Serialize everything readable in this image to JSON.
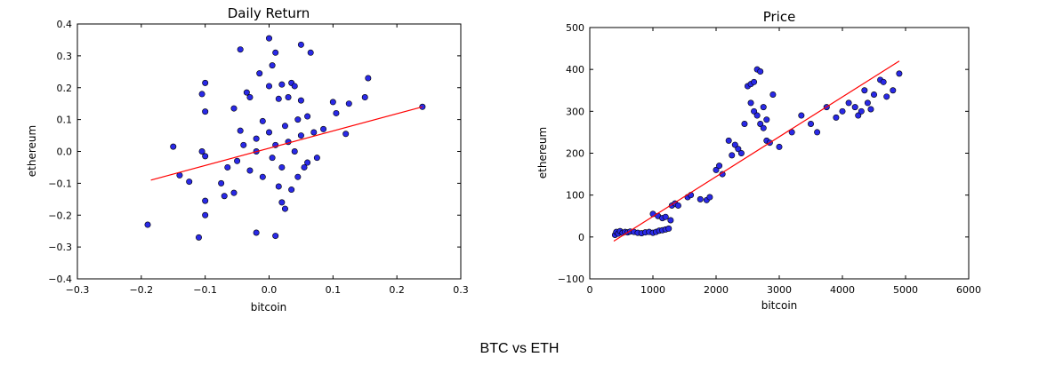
{
  "figure": {
    "caption": "BTC vs ETH"
  },
  "chart_data": [
    {
      "type": "scatter",
      "title": "Daily Return",
      "xlabel": "bitcoin",
      "ylabel": "ethereum",
      "xlim": [
        -0.3,
        0.3
      ],
      "ylim": [
        -0.4,
        0.4
      ],
      "xticks": [
        -0.3,
        -0.2,
        -0.1,
        0.0,
        0.1,
        0.2,
        0.3
      ],
      "yticks": [
        -0.4,
        -0.3,
        -0.2,
        -0.1,
        0.0,
        0.1,
        0.2,
        0.3,
        0.4
      ],
      "xtick_labels": [
        "−0.3",
        "−0.2",
        "−0.1",
        "0.0",
        "0.1",
        "0.2",
        "0.3"
      ],
      "ytick_labels": [
        "−0.4",
        "−0.3",
        "−0.2",
        "−0.1",
        "0.0",
        "0.1",
        "0.2",
        "0.3",
        "0.4"
      ],
      "marker_color": "#2929e6",
      "line_color": "#ff0000",
      "grid": false,
      "points": [
        [
          0.0,
          0.355
        ],
        [
          0.05,
          0.335
        ],
        [
          -0.045,
          0.32
        ],
        [
          0.065,
          0.31
        ],
        [
          0.01,
          0.31
        ],
        [
          0.005,
          0.27
        ],
        [
          -0.015,
          0.245
        ],
        [
          0.035,
          0.215
        ],
        [
          0.04,
          0.205
        ],
        [
          -0.1,
          0.215
        ],
        [
          -0.105,
          0.18
        ],
        [
          -0.1,
          0.125
        ],
        [
          -0.035,
          0.185
        ],
        [
          0.0,
          0.205
        ],
        [
          0.02,
          0.21
        ],
        [
          0.155,
          0.23
        ],
        [
          0.15,
          0.17
        ],
        [
          0.1,
          0.155
        ],
        [
          0.125,
          0.15
        ],
        [
          0.105,
          0.12
        ],
        [
          0.24,
          0.14
        ],
        [
          0.085,
          0.07
        ],
        [
          0.12,
          0.055
        ],
        [
          -0.15,
          0.015
        ],
        [
          -0.1,
          -0.015
        ],
        [
          -0.105,
          0.0
        ],
        [
          -0.14,
          -0.075
        ],
        [
          -0.125,
          -0.095
        ],
        [
          -0.1,
          -0.155
        ],
        [
          -0.1,
          -0.2
        ],
        [
          -0.19,
          -0.23
        ],
        [
          -0.11,
          -0.27
        ],
        [
          -0.02,
          -0.255
        ],
        [
          0.01,
          -0.265
        ],
        [
          0.025,
          -0.18
        ],
        [
          0.02,
          -0.16
        ],
        [
          0.035,
          -0.12
        ],
        [
          -0.075,
          -0.1
        ],
        [
          -0.07,
          -0.14
        ],
        [
          -0.055,
          -0.13
        ],
        [
          0.06,
          -0.035
        ],
        [
          0.045,
          -0.08
        ],
        [
          0.075,
          -0.02
        ],
        [
          0.07,
          0.06
        ],
        [
          0.06,
          0.11
        ],
        [
          0.05,
          0.16
        ],
        [
          0.03,
          0.17
        ],
        [
          0.015,
          0.165
        ],
        [
          -0.03,
          0.17
        ],
        [
          -0.055,
          0.135
        ],
        [
          -0.01,
          0.095
        ],
        [
          0.0,
          0.06
        ],
        [
          0.01,
          0.02
        ],
        [
          -0.02,
          0.0
        ],
        [
          0.03,
          0.03
        ],
        [
          0.04,
          0.0
        ],
        [
          -0.04,
          0.02
        ],
        [
          -0.05,
          -0.03
        ],
        [
          0.02,
          -0.05
        ],
        [
          -0.01,
          -0.08
        ],
        [
          0.015,
          -0.11
        ],
        [
          -0.03,
          -0.06
        ],
        [
          0.05,
          0.05
        ],
        [
          -0.02,
          0.04
        ],
        [
          0.005,
          -0.02
        ],
        [
          0.025,
          0.08
        ],
        [
          -0.045,
          0.065
        ],
        [
          0.045,
          0.1
        ],
        [
          -0.065,
          -0.05
        ],
        [
          0.055,
          -0.05
        ]
      ],
      "fit_line": {
        "x": [
          -0.185,
          0.24
        ],
        "y": [
          -0.09,
          0.14
        ]
      }
    },
    {
      "type": "scatter",
      "title": "Price",
      "xlabel": "bitcoin",
      "ylabel": "ethereum",
      "xlim": [
        0,
        6000
      ],
      "ylim": [
        -100,
        500
      ],
      "xticks": [
        0,
        1000,
        2000,
        3000,
        4000,
        5000,
        6000
      ],
      "yticks": [
        -100,
        0,
        100,
        200,
        300,
        400,
        500
      ],
      "xtick_labels": [
        "0",
        "1000",
        "2000",
        "3000",
        "4000",
        "5000",
        "6000"
      ],
      "ytick_labels": [
        "−100",
        "0",
        "100",
        "200",
        "300",
        "400",
        "500"
      ],
      "marker_color": "#2929e6",
      "line_color": "#ff0000",
      "grid": false,
      "points": [
        [
          400,
          5
        ],
        [
          420,
          12
        ],
        [
          450,
          8
        ],
        [
          480,
          14
        ],
        [
          520,
          10
        ],
        [
          560,
          12
        ],
        [
          600,
          11
        ],
        [
          640,
          13
        ],
        [
          700,
          12
        ],
        [
          760,
          10
        ],
        [
          820,
          9
        ],
        [
          880,
          11
        ],
        [
          940,
          12
        ],
        [
          1000,
          10
        ],
        [
          1050,
          12
        ],
        [
          1100,
          15
        ],
        [
          1150,
          16
        ],
        [
          1200,
          18
        ],
        [
          1250,
          20
        ],
        [
          1000,
          55
        ],
        [
          1080,
          50
        ],
        [
          1150,
          45
        ],
        [
          1200,
          48
        ],
        [
          1280,
          40
        ],
        [
          1300,
          75
        ],
        [
          1350,
          80
        ],
        [
          1400,
          75
        ],
        [
          1550,
          95
        ],
        [
          1600,
          100
        ],
        [
          1750,
          90
        ],
        [
          1850,
          88
        ],
        [
          1900,
          95
        ],
        [
          2000,
          160
        ],
        [
          2050,
          170
        ],
        [
          2100,
          150
        ],
        [
          2200,
          230
        ],
        [
          2250,
          195
        ],
        [
          2300,
          220
        ],
        [
          2350,
          210
        ],
        [
          2400,
          200
        ],
        [
          2450,
          270
        ],
        [
          2500,
          360
        ],
        [
          2550,
          365
        ],
        [
          2600,
          370
        ],
        [
          2650,
          400
        ],
        [
          2700,
          395
        ],
        [
          2550,
          320
        ],
        [
          2600,
          300
        ],
        [
          2650,
          290
        ],
        [
          2700,
          270
        ],
        [
          2750,
          260
        ],
        [
          2800,
          230
        ],
        [
          2850,
          225
        ],
        [
          2900,
          340
        ],
        [
          2750,
          310
        ],
        [
          2800,
          280
        ],
        [
          3000,
          215
        ],
        [
          3200,
          250
        ],
        [
          3350,
          290
        ],
        [
          3500,
          270
        ],
        [
          3600,
          250
        ],
        [
          3750,
          310
        ],
        [
          3900,
          285
        ],
        [
          4000,
          300
        ],
        [
          4100,
          320
        ],
        [
          4200,
          310
        ],
        [
          4250,
          290
        ],
        [
          4300,
          300
        ],
        [
          4350,
          350
        ],
        [
          4400,
          320
        ],
        [
          4450,
          305
        ],
        [
          4500,
          340
        ],
        [
          4600,
          375
        ],
        [
          4650,
          370
        ],
        [
          4700,
          335
        ],
        [
          4800,
          350
        ],
        [
          4900,
          390
        ]
      ],
      "fit_line": {
        "x": [
          380,
          4900
        ],
        "y": [
          -10,
          420
        ]
      }
    }
  ]
}
